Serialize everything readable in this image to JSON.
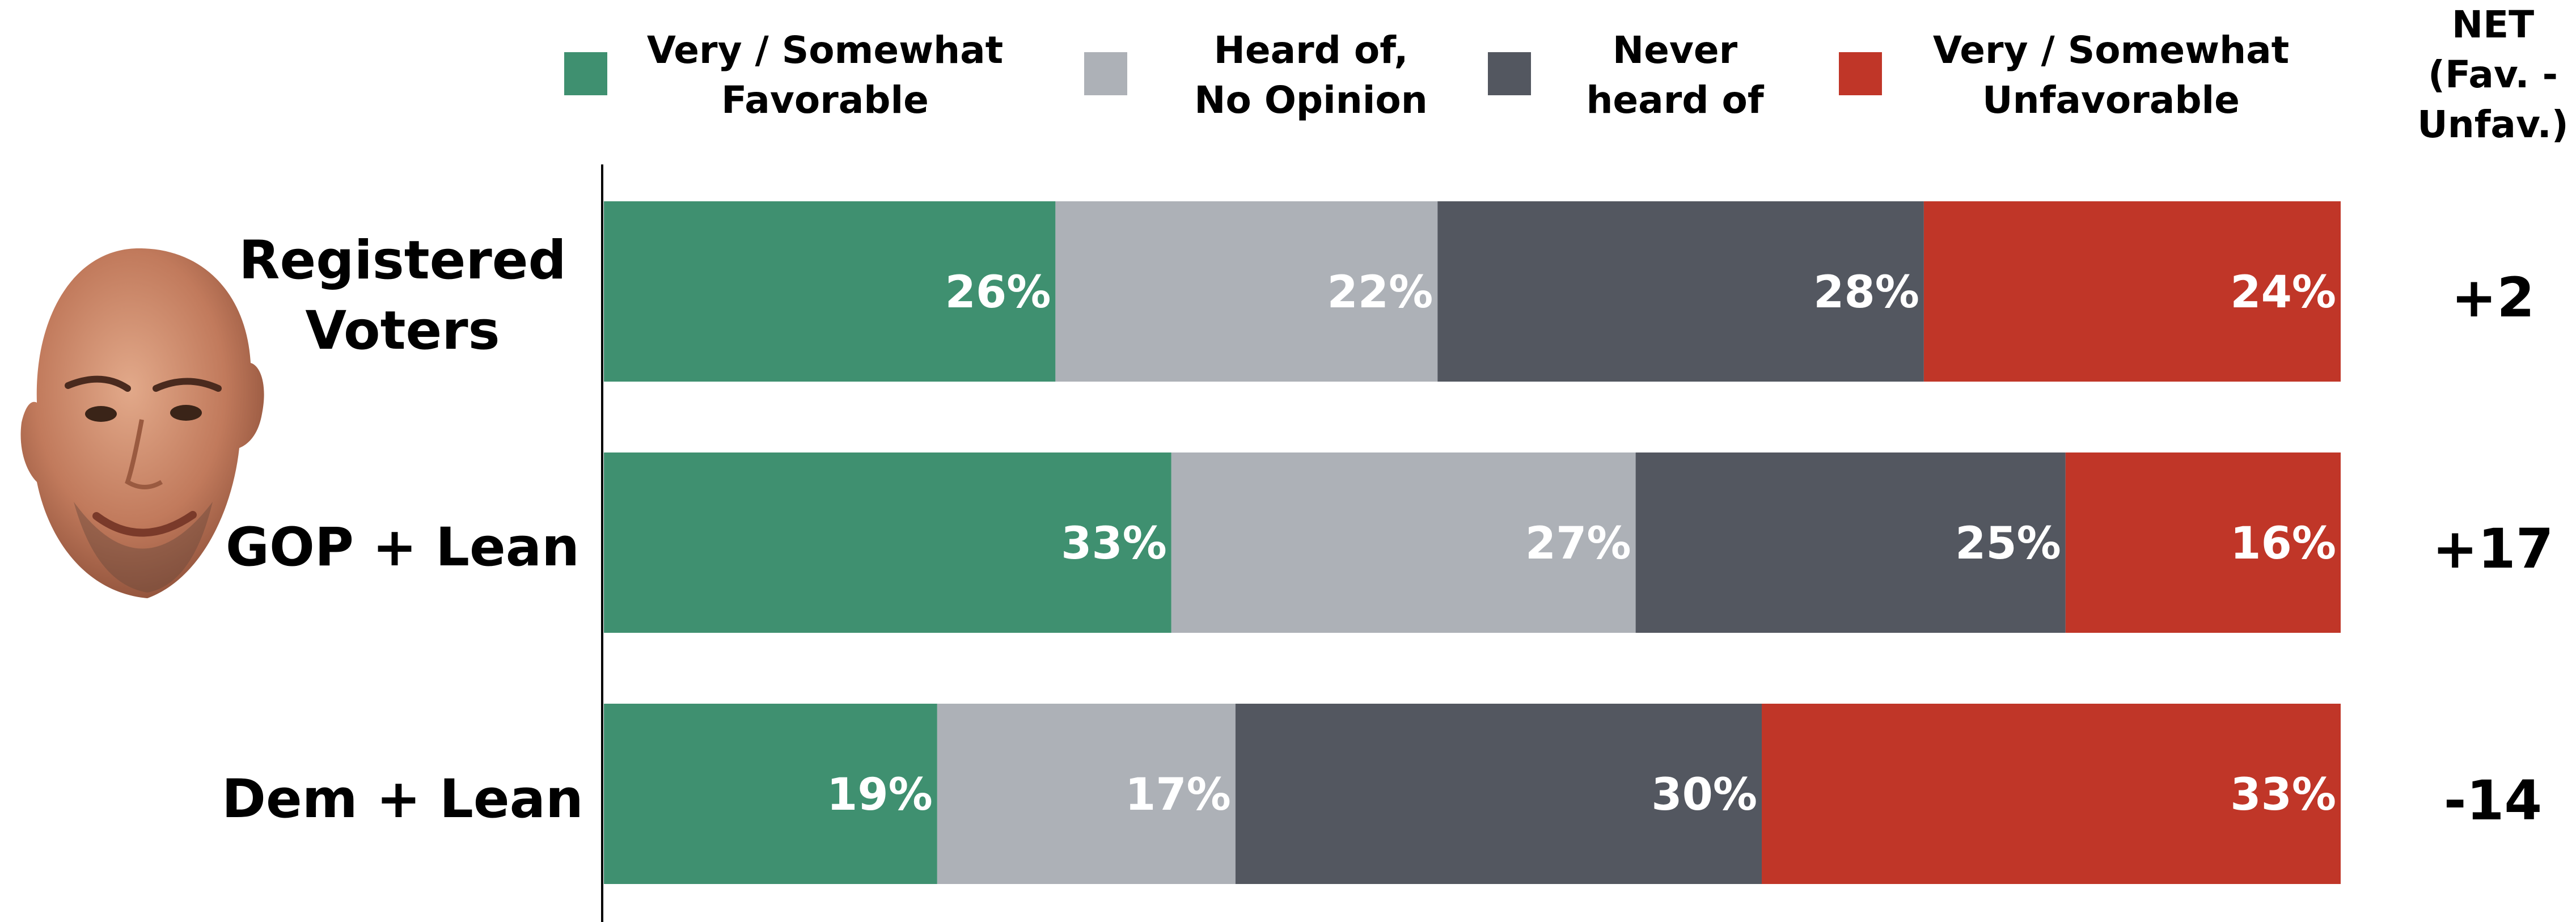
{
  "colors": {
    "favorable": "#3f9070",
    "no_opinion": "#adb1b7",
    "never_heard": "#535760",
    "unfavorable": "#c03628"
  },
  "legend": [
    {
      "label": "Very / Somewhat\nFavorable",
      "color": "#3f9070"
    },
    {
      "label": "Heard of,\nNo Opinion",
      "color": "#adb1b7"
    },
    {
      "label": "Never\nheard of",
      "color": "#535760"
    },
    {
      "label": "Very / Somewhat\nUnfavorable",
      "color": "#c03628"
    }
  ],
  "net_header": "NET\n(Fav. -\nUnfav.)",
  "rows": [
    {
      "label": "Registered\nVoters",
      "net": "+2"
    },
    {
      "label": "GOP + Lean",
      "net": "+17"
    },
    {
      "label": "Dem + Lean",
      "net": "-14"
    }
  ],
  "chart_data": {
    "type": "bar",
    "orientation": "horizontal",
    "stacked": true,
    "categories": [
      "Registered Voters",
      "GOP + Lean",
      "Dem + Lean"
    ],
    "series": [
      {
        "name": "Very / Somewhat Favorable",
        "values": [
          26,
          33,
          19
        ],
        "labels": [
          "26%",
          "33%",
          "19%"
        ]
      },
      {
        "name": "Heard of, No Opinion",
        "values": [
          22,
          27,
          17
        ],
        "labels": [
          "22%",
          "27%",
          "17%"
        ]
      },
      {
        "name": "Never heard of",
        "values": [
          28,
          25,
          30
        ],
        "labels": [
          "28%",
          "25%",
          "30%"
        ]
      },
      {
        "name": "Very / Somewhat Unfavorable",
        "values": [
          24,
          16,
          33
        ],
        "labels": [
          "24%",
          "16%",
          "33%"
        ]
      }
    ],
    "net": [
      "+2",
      "+17",
      "-14"
    ],
    "legend_position": "top"
  }
}
